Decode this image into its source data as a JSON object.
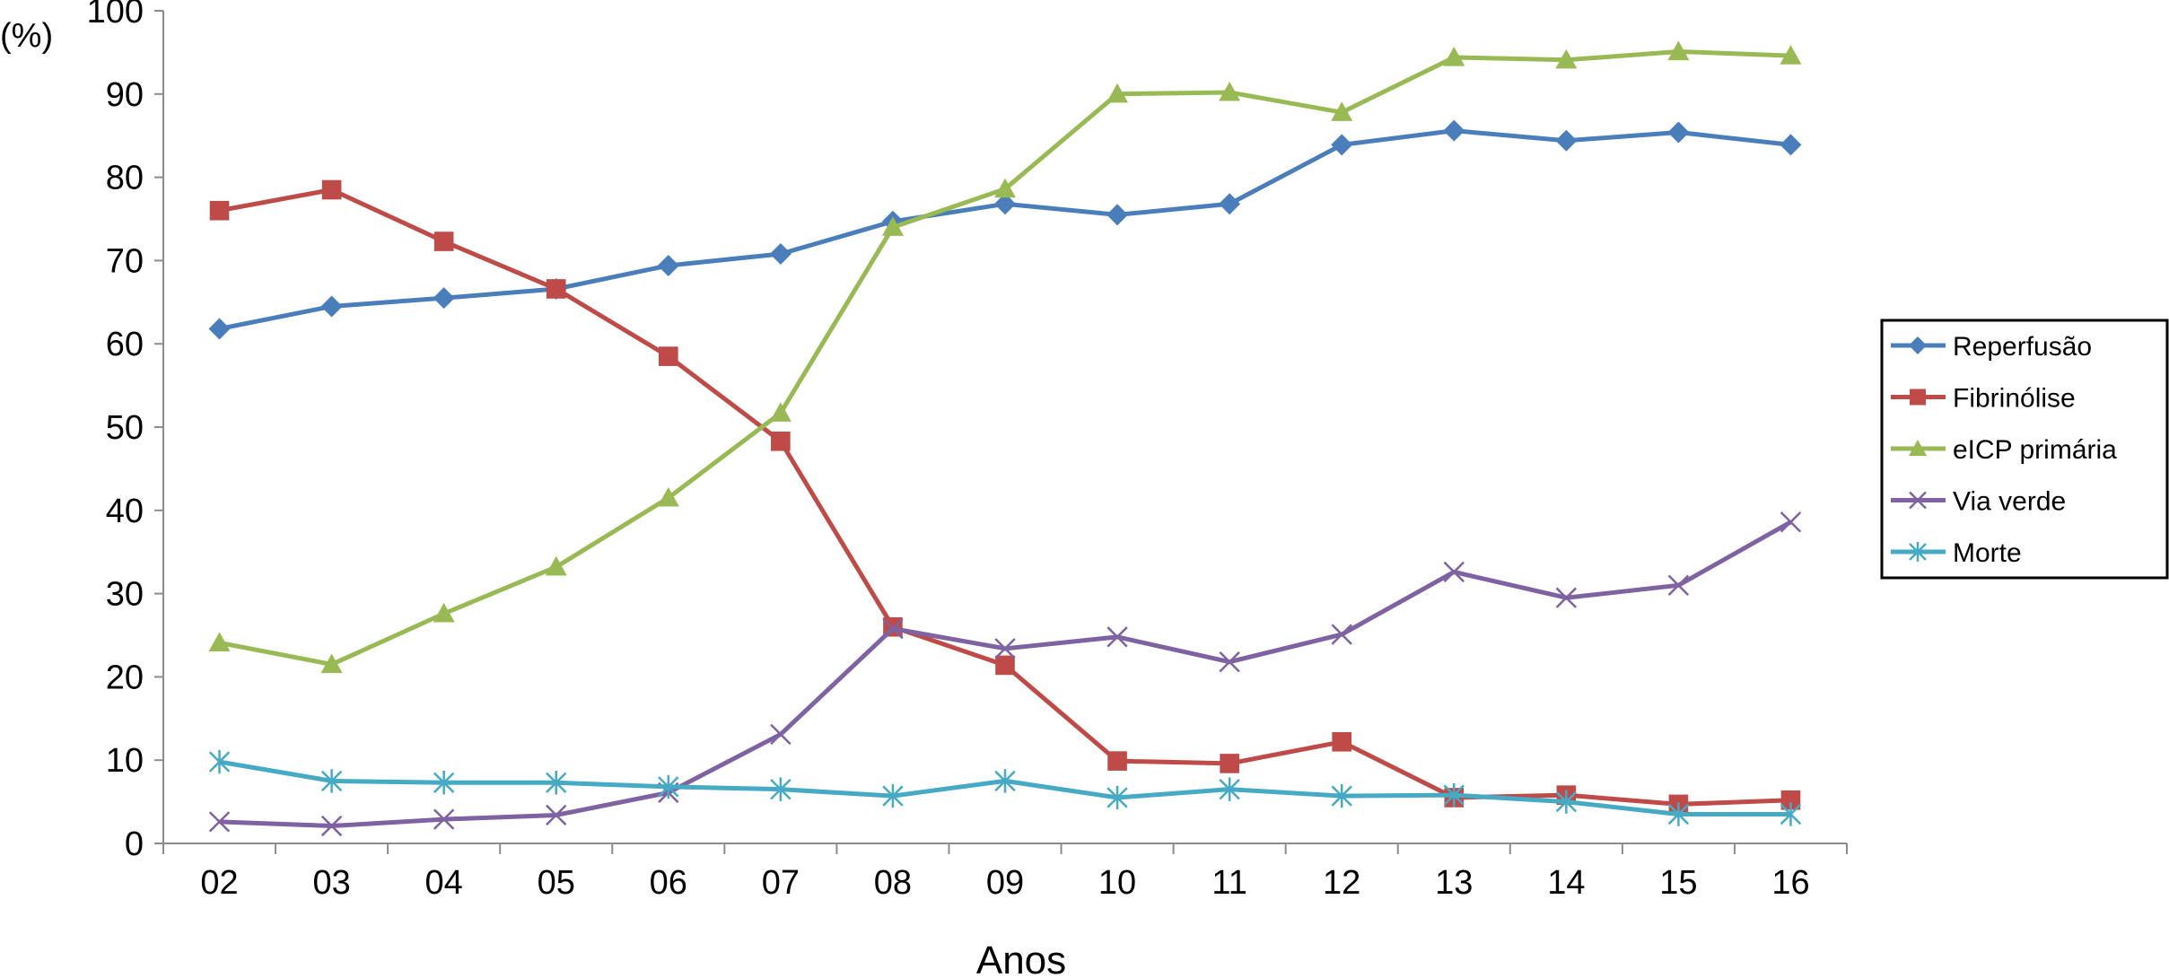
{
  "chart_data": {
    "type": "line",
    "title": "",
    "ylabel": "(%)",
    "xlabel": "Anos",
    "ylim": [
      0,
      100
    ],
    "yticks": [
      0,
      10,
      20,
      30,
      40,
      50,
      60,
      70,
      80,
      90,
      100
    ],
    "categories": [
      "02",
      "03",
      "04",
      "05",
      "06",
      "07",
      "08",
      "09",
      "10",
      "11",
      "12",
      "13",
      "14",
      "15",
      "16"
    ],
    "grid": false,
    "legend_position": "right",
    "series": [
      {
        "name": "Reperfusão",
        "color": "#4a7ebb",
        "marker": "diamond",
        "values": [
          61.8,
          64.5,
          65.5,
          66.6,
          69.4,
          70.8,
          74.7,
          76.8,
          75.5,
          76.8,
          83.9,
          85.6,
          84.4,
          85.4,
          83.9
        ]
      },
      {
        "name": "Fibrinólise",
        "color": "#be4b48",
        "marker": "square",
        "values": [
          76.0,
          78.5,
          72.3,
          66.6,
          58.5,
          48.3,
          26.0,
          21.4,
          9.9,
          9.6,
          12.2,
          5.5,
          5.8,
          4.7,
          5.2
        ]
      },
      {
        "name": "eICP primária",
        "color": "#98b954",
        "marker": "triangle",
        "values": [
          24.1,
          21.5,
          27.6,
          33.2,
          41.5,
          51.7,
          74.0,
          78.6,
          90.0,
          90.2,
          87.8,
          94.4,
          94.1,
          95.1,
          94.6
        ]
      },
      {
        "name": "Via verde",
        "color": "#7e62a1",
        "marker": "x",
        "values": [
          2.6,
          2.1,
          2.9,
          3.4,
          6.1,
          13.1,
          25.8,
          23.4,
          24.8,
          21.8,
          25.1,
          32.6,
          29.5,
          31.0,
          38.6
        ]
      },
      {
        "name": "Morte",
        "color": "#46aac5",
        "marker": "star",
        "values": [
          9.8,
          7.5,
          7.3,
          7.3,
          6.8,
          6.5,
          5.7,
          7.5,
          5.5,
          6.5,
          5.7,
          5.8,
          5.0,
          3.5,
          3.5
        ]
      }
    ]
  }
}
